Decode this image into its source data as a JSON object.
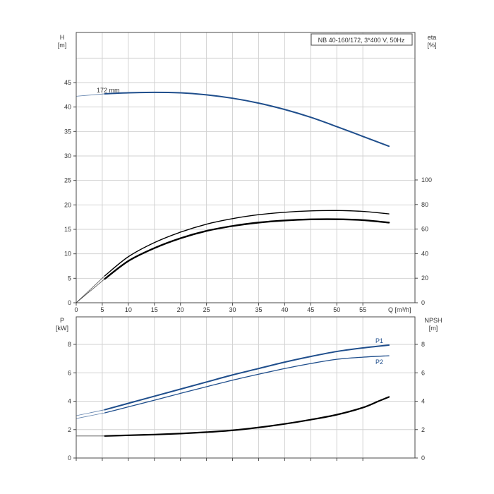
{
  "chart_data": [
    {
      "type": "line",
      "title_box": "NB 40-160/172, 3*400 V, 50Hz",
      "x_axis": {
        "label": "Q [m³/h]",
        "ticks": [
          0,
          5,
          10,
          15,
          20,
          25,
          30,
          35,
          40,
          45,
          50,
          55
        ],
        "range": [
          0,
          65
        ]
      },
      "left_axis": {
        "label_1": "H",
        "label_2": "[m]",
        "ticks": [
          0,
          5,
          10,
          15,
          20,
          25,
          30,
          35,
          40,
          45
        ],
        "range": [
          0,
          55
        ]
      },
      "right_axis": {
        "label_1": "eta",
        "label_2": "[%]",
        "ticks": [
          0,
          20,
          40,
          60,
          80,
          100
        ],
        "range": [
          0,
          100
        ]
      },
      "grid": true,
      "series": [
        {
          "name": "172 mm",
          "axis": "left",
          "color": "#1f4e8c",
          "x": [
            0,
            5.5,
            10,
            15,
            20,
            25,
            30,
            35,
            40,
            45,
            50,
            55,
            60
          ],
          "y": [
            42.2,
            42.7,
            42.9,
            43.0,
            42.9,
            42.5,
            41.8,
            40.8,
            39.5,
            37.9,
            36.0,
            34.0,
            32.0
          ]
        },
        {
          "name": "",
          "axis": "right",
          "color": "#000000",
          "x": [
            0,
            5.5,
            10,
            15,
            20,
            25,
            30,
            35,
            40,
            45,
            50,
            55,
            60
          ],
          "y": [
            0,
            22,
            37.5,
            49,
            57.5,
            64,
            68.5,
            71.7,
            73.7,
            74.8,
            75.1,
            74.4,
            72.4
          ]
        },
        {
          "name": "",
          "axis": "right",
          "color": "#000000",
          "x": [
            0,
            5.5,
            10,
            15,
            20,
            25,
            30,
            35,
            40,
            45,
            50,
            55,
            60
          ],
          "y": [
            0,
            19.5,
            34,
            44.5,
            52.5,
            58.5,
            62.5,
            65.3,
            67,
            67.9,
            68,
            67.3,
            65.3
          ]
        }
      ]
    },
    {
      "type": "line",
      "x_axis": {
        "label": "",
        "ticks": [
          0,
          5,
          10,
          15,
          20,
          25,
          30,
          35,
          40,
          45,
          50,
          55
        ],
        "range": [
          0,
          65
        ]
      },
      "left_axis": {
        "label_1": "P",
        "label_2": "[kW]",
        "ticks": [
          0,
          2,
          4,
          6,
          8
        ],
        "range": [
          0,
          10
        ]
      },
      "right_axis": {
        "label_1": "NPSH",
        "label_2": "[m]",
        "ticks": [
          0,
          2,
          4,
          6,
          8
        ],
        "range": [
          0,
          10
        ]
      },
      "grid": true,
      "series": [
        {
          "name": "P1",
          "axis": "left",
          "color": "#1f4e8c",
          "x": [
            0,
            5.5,
            10,
            15,
            20,
            25,
            30,
            35,
            40,
            45,
            50,
            55,
            60
          ],
          "y": [
            2.98,
            3.4,
            3.85,
            4.35,
            4.85,
            5.35,
            5.85,
            6.3,
            6.75,
            7.15,
            7.5,
            7.75,
            7.95
          ]
        },
        {
          "name": "P2",
          "axis": "left",
          "color": "#1f4e8c",
          "x": [
            0,
            5.5,
            10,
            15,
            20,
            25,
            30,
            35,
            40,
            45,
            50,
            55,
            60
          ],
          "y": [
            2.78,
            3.18,
            3.6,
            4.07,
            4.55,
            5.02,
            5.48,
            5.9,
            6.3,
            6.65,
            6.95,
            7.1,
            7.2
          ]
        },
        {
          "name": "",
          "axis": "right",
          "color": "#000000",
          "x": [
            0,
            5.5,
            10,
            15,
            20,
            25,
            30,
            35,
            40,
            45,
            50,
            55,
            58,
            60
          ],
          "y": [
            1.55,
            1.55,
            1.6,
            1.65,
            1.72,
            1.82,
            1.95,
            2.15,
            2.4,
            2.7,
            3.05,
            3.55,
            4.0,
            4.3
          ]
        }
      ]
    }
  ]
}
